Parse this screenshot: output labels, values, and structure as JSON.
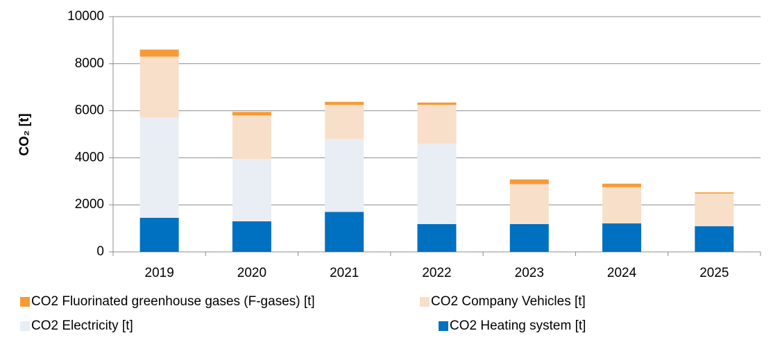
{
  "chart_data": {
    "type": "stacked_bar",
    "y_label": "CO₂ [t]",
    "categories": [
      "2019",
      "2020",
      "2021",
      "2022",
      "2023",
      "2024",
      "2025"
    ],
    "series": [
      {
        "name": "CO2 Heating system [t]",
        "color": "#0070c0",
        "values": [
          1450,
          1300,
          1700,
          1180,
          1180,
          1210,
          1090
        ]
      },
      {
        "name": "CO2 Electricity [t]",
        "color": "#e9edf4",
        "values": [
          4270,
          2650,
          3100,
          3420,
          0,
          0,
          0
        ]
      },
      {
        "name": "CO2 Company Vehicles [t]",
        "color": "#f8dfc9",
        "values": [
          2580,
          1850,
          1450,
          1650,
          1700,
          1540,
          1390
        ]
      },
      {
        "name": "CO2 Fluorinated greenhouse gases (F-gases) [t]",
        "color": "#f79a36",
        "values": [
          300,
          150,
          130,
          100,
          200,
          150,
          50
        ]
      }
    ],
    "ylim": [
      0,
      10000
    ],
    "yticks": [
      0,
      2000,
      4000,
      6000,
      8000,
      10000
    ],
    "grid": true
  }
}
